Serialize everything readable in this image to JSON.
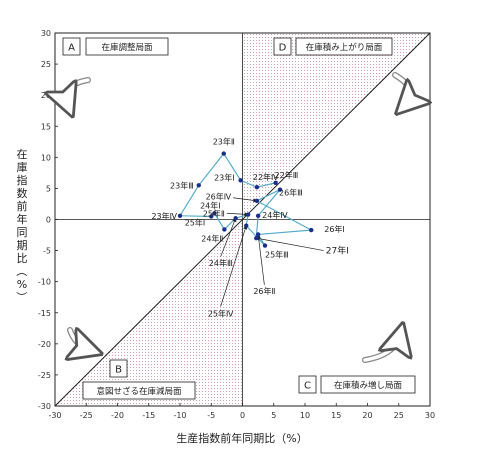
{
  "chart_data": {
    "type": "scatter",
    "xlabel": "生産指数前年同期比（%）",
    "ylabel": "在庫指数前年同期比（%）",
    "xlim": [
      -30,
      30
    ],
    "ylim": [
      -30,
      30
    ],
    "x_ticks": [
      -30,
      -25,
      -20,
      -15,
      -10,
      -5,
      0,
      5,
      10,
      15,
      20,
      25,
      30
    ],
    "y_ticks": [
      -30,
      -25,
      -20,
      -15,
      -10,
      -5,
      0,
      5,
      10,
      15,
      20,
      25,
      30
    ],
    "grid": false,
    "line_color": "#4aa8c8",
    "point_color": "#1a2e8a",
    "shade_color": "#c48aa0",
    "quadrants": [
      {
        "letter": "A",
        "name": "在庫調整局面"
      },
      {
        "letter": "B",
        "name": "意図せざる在庫減局面"
      },
      {
        "letter": "C",
        "name": "在庫積み増し局面"
      },
      {
        "letter": "D",
        "name": "在庫積み上がり局面"
      }
    ],
    "points": [
      {
        "label": "22年Ⅳ",
        "x": 2.3,
        "y": 5.2
      },
      {
        "label": "22年Ⅲ",
        "x": 5.3,
        "y": 5.9
      },
      {
        "label": "23年Ⅰ",
        "x": -0.3,
        "y": 6.3
      },
      {
        "label": "23年Ⅱ",
        "x": -3.0,
        "y": 10.6
      },
      {
        "label": "23年Ⅲ",
        "x": -7.0,
        "y": 5.5
      },
      {
        "label": "23年Ⅳ",
        "x": -10.0,
        "y": 0.6
      },
      {
        "label": "24年Ⅰ",
        "x": -4.5,
        "y": 1.0
      },
      {
        "label": "24年Ⅱ",
        "x": -2.9,
        "y": -1.6
      },
      {
        "label": "24年Ⅲ",
        "x": -1.1,
        "y": 0.2
      },
      {
        "label": "24年Ⅳ",
        "x": 2.5,
        "y": 0.6
      },
      {
        "label": "25年Ⅰ",
        "x": -5.0,
        "y": 0.5
      },
      {
        "label": "25年Ⅱ",
        "x": 0.9,
        "y": 0.8
      },
      {
        "label": "25年Ⅲ",
        "x": 3.6,
        "y": -4.2
      },
      {
        "label": "25年Ⅳ",
        "x": 0.6,
        "y": -1.0
      },
      {
        "label": "26年Ⅰ",
        "x": 11.0,
        "y": -1.7
      },
      {
        "label": "26年Ⅱ",
        "x": 2.5,
        "y": -2.4
      },
      {
        "label": "26年Ⅲ",
        "x": 6.0,
        "y": 4.8
      },
      {
        "label": "26年Ⅳ",
        "x": 2.3,
        "y": 3.0
      },
      {
        "label": "27年Ⅰ",
        "x": 2.2,
        "y": -3.0
      }
    ],
    "path_order": [
      "22年Ⅲ",
      "22年Ⅳ",
      "23年Ⅰ",
      "23年Ⅱ",
      "23年Ⅲ",
      "23年Ⅳ",
      "25年Ⅰ",
      "24年Ⅰ",
      "24年Ⅱ",
      "24年Ⅲ",
      "25年Ⅱ",
      "25年Ⅳ",
      "25年Ⅲ",
      "26年Ⅱ",
      "26年Ⅰ",
      "26年Ⅳ",
      "26年Ⅲ",
      "24年Ⅳ",
      "27年Ⅰ"
    ],
    "annotations": [
      {
        "label": "26年Ⅳ",
        "text_x": -1.5,
        "text_y": 3.5,
        "arrow_to": [
          2.3,
          3.0
        ]
      },
      {
        "label": "25年Ⅱ",
        "text_x": -2.5,
        "text_y": 1.0,
        "arrow_to": [
          0.9,
          0.8
        ]
      },
      {
        "label": "24年Ⅲ",
        "text_x": -3.5,
        "text_y": -6.0,
        "arrow_to": [
          -1.1,
          0.2
        ]
      },
      {
        "label": "25年Ⅳ",
        "text_x": -3.5,
        "text_y": -14.0,
        "arrow_to": [
          0.6,
          -1.0
        ]
      },
      {
        "label": "26年Ⅱ",
        "text_x": 3.5,
        "text_y": -10.5,
        "arrow_to": [
          2.5,
          -2.4
        ]
      },
      {
        "label": "27年Ⅰ",
        "text_x": 13.0,
        "text_y": -5.0,
        "arrow_to": [
          2.2,
          -3.0
        ]
      }
    ]
  }
}
